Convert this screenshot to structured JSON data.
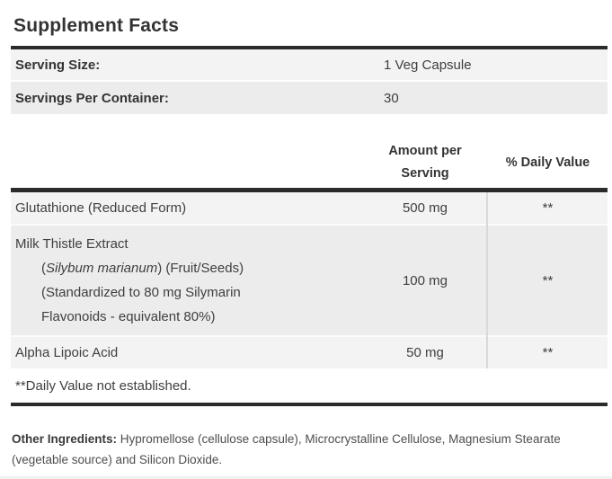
{
  "title": "Supplement Facts",
  "serving_info": [
    {
      "label": "Serving Size:",
      "value": "1 Veg Capsule"
    },
    {
      "label": "Servings Per Container:",
      "value": "30"
    }
  ],
  "column_headers": {
    "amount": "Amount per Serving",
    "daily_value": "% Daily Value"
  },
  "ingredients": [
    {
      "name": "Glutathione (Reduced Form)",
      "details": [],
      "amount": "500 mg",
      "daily_value": "**",
      "shade": "light"
    },
    {
      "name": "Milk Thistle Extract",
      "details": [
        [
          {
            "t": "("
          },
          {
            "t": "Silybum marianum",
            "i": true
          },
          {
            "t": ") (Fruit/Seeds)"
          }
        ],
        [
          {
            "t": "(Standardized to 80 mg Silymarin"
          }
        ],
        [
          {
            "t": "Flavonoids - equivalent 80%)"
          }
        ]
      ],
      "amount": "100 mg",
      "daily_value": "**",
      "shade": "dark"
    },
    {
      "name": "Alpha Lipoic Acid",
      "details": [],
      "amount": "50 mg",
      "daily_value": "**",
      "shade": "light"
    }
  ],
  "footnote": "**Daily Value not established.",
  "other_ingredients": {
    "label": "Other Ingredients:",
    "text": " Hypromellose (cellulose capsule), Microcrystalline Cellulose, Magnesium Stearate (vegetable source) and Silicon Dioxide."
  },
  "colors": {
    "bar": "#2b2b2b",
    "row_light": "#f3f3f3",
    "row_dark": "#ececec",
    "divider": "#d9d9d9"
  }
}
